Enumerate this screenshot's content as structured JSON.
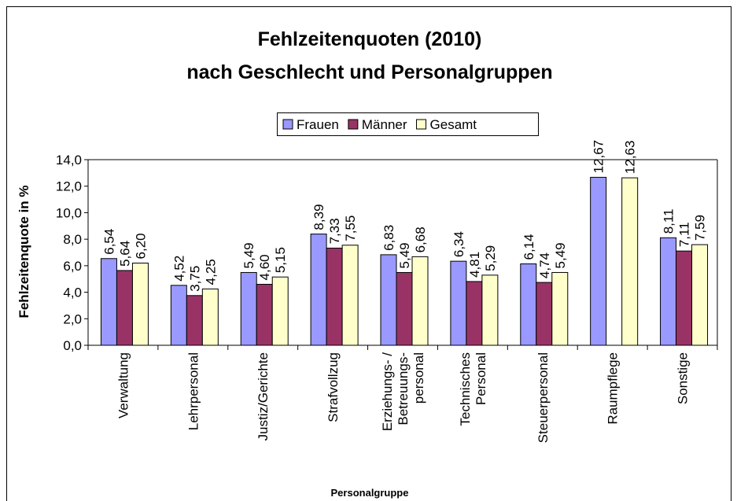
{
  "chart_data": {
    "type": "bar",
    "title": "Fehlzeitenquoten (2010)",
    "subtitle": "nach Geschlecht und Personalgruppen",
    "x_label": "Personalgruppe",
    "y_label": "Fehlzeitenquote in %",
    "categories": [
      "Verwaltung",
      "Lehrpersonal",
      "Justiz/Gerichte",
      "Strafvollzug",
      "Erziehungs- /\nBetreuungs-\npersonal",
      "Technisches\nPersonal",
      "Steuerpersonal",
      "Raumpflege",
      "Sonstige"
    ],
    "series": [
      {
        "name": "Frauen",
        "color": "#9999ff",
        "values": [
          6.54,
          4.52,
          5.49,
          8.39,
          6.83,
          6.34,
          6.14,
          12.67,
          8.11
        ],
        "value_labels": [
          "6,54",
          "4,52",
          "5,49",
          "8,39",
          "6,83",
          "6,34",
          "6,14",
          "12,67",
          "8,11"
        ]
      },
      {
        "name": "Männer",
        "color": "#993366",
        "values": [
          5.64,
          3.75,
          4.6,
          7.33,
          5.49,
          4.81,
          4.74,
          null,
          7.11
        ],
        "value_labels": [
          "5,64",
          "3,75",
          "4,60",
          "7,33",
          "5,49",
          "4,81",
          "4,74",
          null,
          "7,11"
        ]
      },
      {
        "name": "Gesamt",
        "color": "#ffffcc",
        "values": [
          6.2,
          4.25,
          5.15,
          7.55,
          6.68,
          5.29,
          5.49,
          12.63,
          7.59
        ],
        "value_labels": [
          "6,20",
          "4,25",
          "5,15",
          "7,55",
          "6,68",
          "5,29",
          "5,49",
          "12,63",
          "7,59"
        ]
      }
    ],
    "ylim": [
      0,
      14
    ],
    "yticks": [
      {
        "value": 0,
        "label": "0,0"
      },
      {
        "value": 2,
        "label": "2,0"
      },
      {
        "value": 4,
        "label": "4,0"
      },
      {
        "value": 6,
        "label": "6,0"
      },
      {
        "value": 8,
        "label": "8,0"
      },
      {
        "value": 10,
        "label": "10,0"
      },
      {
        "value": 12,
        "label": "12,0"
      },
      {
        "value": 14,
        "label": "14,0"
      }
    ],
    "legend": "top"
  }
}
